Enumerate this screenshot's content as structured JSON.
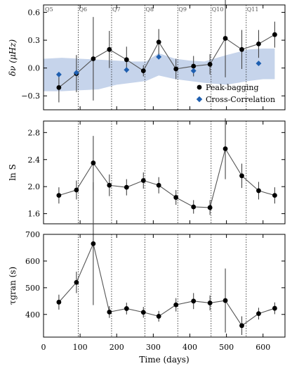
{
  "chart_data": {
    "type": "multi-panel-errorbar",
    "xlabel": "Time (days)",
    "x": [
      42,
      90,
      136,
      180,
      227,
      273,
      315,
      362,
      410,
      455,
      497,
      542,
      588,
      632
    ],
    "quarter_boundaries": [
      95,
      186,
      277,
      367,
      458,
      554
    ],
    "quarter_labels": [
      "Q5",
      "Q6",
      "Q7",
      "Q8",
      "Q9",
      "Q10",
      "Q11"
    ],
    "quarter_label_x": [
      2,
      95,
      186,
      277,
      367,
      458,
      554
    ],
    "xlim": [
      0,
      660
    ],
    "xticks": [
      0,
      100,
      200,
      300,
      400,
      500,
      600
    ],
    "panels": [
      {
        "ylabel": "δν (μHz)",
        "ylim": [
          -0.45,
          0.68
        ],
        "yticks": [
          -0.3,
          0.0,
          0.3,
          0.6
        ],
        "ytick_labels": [
          "−0.3",
          "0.0",
          "0.3",
          "0.6"
        ],
        "band": {
          "x": [
            0,
            50,
            100,
            150,
            200,
            240,
            280,
            315,
            360,
            400,
            440,
            500,
            560,
            600,
            632
          ],
          "upper": [
            0.1,
            0.11,
            0.1,
            0.09,
            0.08,
            0.07,
            0.07,
            0.16,
            0.1,
            0.08,
            0.07,
            0.14,
            0.2,
            0.21,
            0.21
          ],
          "lower": [
            -0.25,
            -0.25,
            -0.24,
            -0.23,
            -0.18,
            -0.16,
            -0.14,
            -0.08,
            -0.12,
            -0.14,
            -0.16,
            -0.18,
            -0.14,
            -0.12,
            -0.12
          ]
        },
        "series": [
          {
            "name": "Peak-bagging",
            "color": "#000000",
            "marker": "circle",
            "y": [
              -0.21,
              -0.06,
              0.1,
              0.2,
              0.09,
              -0.03,
              0.28,
              -0.01,
              0.02,
              0.04,
              0.32,
              0.2,
              0.26,
              0.36
            ],
            "yerr": [
              0.16,
              0.2,
              0.45,
              0.2,
              0.14,
              0.06,
              0.14,
              0.11,
              0.11,
              0.11,
              0.42,
              0.21,
              0.15,
              0.14
            ]
          },
          {
            "name": "Cross-Correlation",
            "color": "#1f5fb0",
            "marker": "diamond",
            "x": [
              42,
              90,
              227,
              315,
              410,
              588
            ],
            "y": [
              -0.07,
              -0.05,
              -0.02,
              0.12,
              -0.03,
              0.05
            ]
          }
        ],
        "legend": "lower-right"
      },
      {
        "ylabel": "ln S",
        "ylim": [
          1.45,
          2.97
        ],
        "yticks": [
          1.6,
          2.0,
          2.4,
          2.8
        ],
        "ytick_labels": [
          "1.6",
          "2.0",
          "2.4",
          "2.8"
        ],
        "series": [
          {
            "name": "",
            "color": "#000000",
            "marker": "circle",
            "y": [
              1.87,
              1.95,
              2.35,
              2.02,
              1.99,
              2.09,
              2.02,
              1.84,
              1.7,
              1.69,
              2.56,
              2.16,
              1.94,
              1.87
            ],
            "yerr": [
              0.12,
              0.14,
              0.4,
              0.16,
              0.12,
              0.12,
              0.12,
              0.11,
              0.1,
              0.11,
              0.45,
              0.18,
              0.13,
              0.12
            ]
          }
        ]
      },
      {
        "ylabel": "τgran (s)",
        "ylim": [
          315,
          700
        ],
        "yticks": [
          400,
          500,
          600,
          700
        ],
        "ytick_labels": [
          "400",
          "500",
          "600",
          "700"
        ],
        "series": [
          {
            "name": "",
            "color": "#000000",
            "marker": "circle",
            "y": [
              446,
              520,
              665,
              409,
              422,
              408,
              393,
              436,
              450,
              443,
              452,
              358,
              403,
              423
            ],
            "yerr": [
              28,
              40,
              230,
              22,
              22,
              20,
              20,
              25,
              30,
              28,
              120,
              35,
              22,
              22
            ]
          }
        ]
      }
    ]
  }
}
